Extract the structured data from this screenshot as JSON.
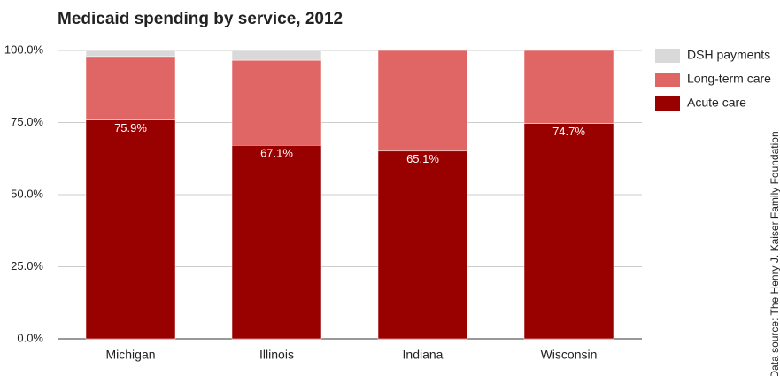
{
  "chart_data": {
    "type": "stacked-bar",
    "title": "Medicaid spending by service, 2012",
    "source": "Data source: The Henry J. Kaiser Family Foundation",
    "categories": [
      "Michigan",
      "Illinois",
      "Indiana",
      "Wisconsin"
    ],
    "series": [
      {
        "name": "Acute care",
        "color": "#990000",
        "values": [
          75.9,
          67.1,
          65.1,
          74.7
        ],
        "value_labels": [
          "75.9%",
          "67.1%",
          "65.1%",
          "74.7%"
        ]
      },
      {
        "name": "Long-term care",
        "color": "#e06666",
        "values": [
          22.0,
          29.5,
          34.9,
          25.3
        ]
      },
      {
        "name": "DSH payments",
        "color": "#d9d9d9",
        "values": [
          2.1,
          3.4,
          0,
          0
        ]
      }
    ],
    "ylim": [
      0,
      100
    ],
    "yticks": [
      {
        "value": 0,
        "label": "0.0%"
      },
      {
        "value": 25,
        "label": "25.0%"
      },
      {
        "value": 50,
        "label": "50.0%"
      },
      {
        "value": 75,
        "label": "75.0%"
      },
      {
        "value": 100,
        "label": "100.0%"
      }
    ],
    "grid": true,
    "legend": "top-right"
  }
}
